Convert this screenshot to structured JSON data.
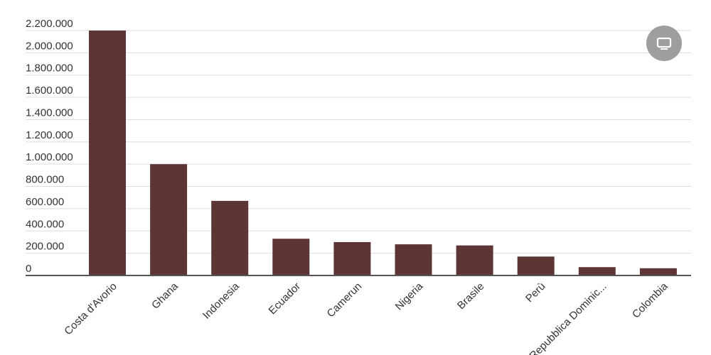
{
  "chart_data": {
    "type": "bar",
    "categories": [
      "Costa d'Avorio",
      "Ghana",
      "Indonesia",
      "Ecuador",
      "Camerun",
      "Nigeria",
      "Brasile",
      "Perù",
      "Repubblica Dominic...",
      "Colombia"
    ],
    "values": [
      2200000,
      1000000,
      670000,
      330000,
      300000,
      280000,
      270000,
      170000,
      75000,
      65000
    ],
    "ylim": [
      0,
      2200000
    ],
    "yticks": [
      0,
      200000,
      400000,
      600000,
      800000,
      1000000,
      1200000,
      1400000,
      1600000,
      1800000,
      2000000,
      2200000
    ],
    "ytick_labels": [
      "0",
      "200.000",
      "400.000",
      "600.000",
      "800.000",
      "1.000.000",
      "1.200.000",
      "1.400.000",
      "1.600.000",
      "1.800.000",
      "2.000.000",
      "2.200.000"
    ],
    "bar_color": "#5e3535",
    "grid": true,
    "legend": "none"
  },
  "controls": {
    "fullscreen_icon": "monitor-icon",
    "button_color": "#9e9e9e"
  }
}
